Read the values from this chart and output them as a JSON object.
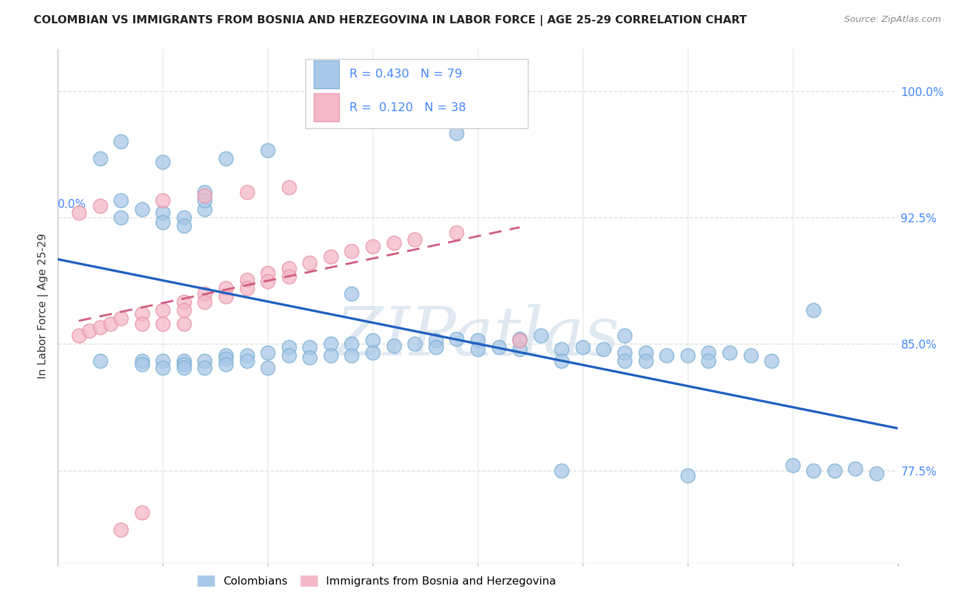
{
  "title": "COLOMBIAN VS IMMIGRANTS FROM BOSNIA AND HERZEGOVINA IN LABOR FORCE | AGE 25-29 CORRELATION CHART",
  "source": "Source: ZipAtlas.com",
  "ylabel": "In Labor Force | Age 25-29",
  "blue_R": 0.43,
  "blue_N": 79,
  "pink_R": 0.12,
  "pink_N": 38,
  "blue_color": "#a8c8e8",
  "blue_edge_color": "#7aafd4",
  "pink_color": "#f4b8c8",
  "pink_edge_color": "#e890a8",
  "blue_line_color": "#2060c0",
  "pink_line_color": "#d06080",
  "legend_blue_label": "Colombians",
  "legend_pink_label": "Immigrants from Bosnia and Herzegovina",
  "xlim": [
    0.0,
    0.4
  ],
  "ylim": [
    0.72,
    1.025
  ],
  "ytick_vals": [
    0.775,
    0.85,
    0.925,
    1.0
  ],
  "ytick_labels": [
    "77.5%",
    "85.0%",
    "92.5%",
    "100.0%"
  ],
  "xtick_vals": [
    0.0,
    0.05,
    0.1,
    0.15,
    0.2,
    0.25,
    0.3,
    0.35,
    0.4
  ],
  "background_color": "#ffffff",
  "grid_color": "#dddddd",
  "watermark": "ZIPatlas",
  "watermark_color": "#c8d8e8",
  "title_color": "#222222",
  "source_color": "#888888",
  "axis_label_color": "#333333",
  "right_tick_color": "#4488ff",
  "bottom_tick_color": "#4488ff",
  "blue_x": [
    0.02,
    0.03,
    0.03,
    0.04,
    0.04,
    0.04,
    0.05,
    0.05,
    0.05,
    0.05,
    0.06,
    0.06,
    0.06,
    0.06,
    0.06,
    0.07,
    0.07,
    0.07,
    0.08,
    0.08,
    0.08,
    0.09,
    0.09,
    0.1,
    0.1,
    0.11,
    0.11,
    0.12,
    0.12,
    0.13,
    0.13,
    0.14,
    0.14,
    0.15,
    0.15,
    0.16,
    0.17,
    0.18,
    0.18,
    0.19,
    0.2,
    0.2,
    0.21,
    0.22,
    0.22,
    0.23,
    0.24,
    0.24,
    0.25,
    0.26,
    0.27,
    0.27,
    0.28,
    0.28,
    0.29,
    0.3,
    0.31,
    0.31,
    0.32,
    0.33,
    0.34,
    0.35,
    0.36,
    0.37,
    0.38,
    0.39,
    0.24,
    0.3,
    0.36,
    0.02,
    0.03,
    0.05,
    0.07,
    0.07,
    0.08,
    0.1,
    0.14,
    0.19,
    0.27
  ],
  "blue_y": [
    0.84,
    0.935,
    0.925,
    0.93,
    0.84,
    0.838,
    0.928,
    0.922,
    0.84,
    0.836,
    0.925,
    0.92,
    0.84,
    0.838,
    0.836,
    0.93,
    0.84,
    0.836,
    0.843,
    0.841,
    0.838,
    0.843,
    0.84,
    0.845,
    0.836,
    0.848,
    0.843,
    0.848,
    0.842,
    0.85,
    0.843,
    0.85,
    0.843,
    0.852,
    0.845,
    0.849,
    0.85,
    0.852,
    0.848,
    0.853,
    0.852,
    0.847,
    0.848,
    0.853,
    0.847,
    0.855,
    0.847,
    0.84,
    0.848,
    0.847,
    0.845,
    0.84,
    0.845,
    0.84,
    0.843,
    0.843,
    0.845,
    0.84,
    0.845,
    0.843,
    0.84,
    0.778,
    0.775,
    0.775,
    0.776,
    0.773,
    0.775,
    0.772,
    0.87,
    0.96,
    0.97,
    0.958,
    0.94,
    0.935,
    0.96,
    0.965,
    0.88,
    0.975,
    0.855
  ],
  "pink_x": [
    0.01,
    0.015,
    0.02,
    0.025,
    0.03,
    0.03,
    0.04,
    0.04,
    0.04,
    0.05,
    0.05,
    0.06,
    0.06,
    0.06,
    0.07,
    0.07,
    0.08,
    0.08,
    0.09,
    0.09,
    0.1,
    0.1,
    0.11,
    0.11,
    0.12,
    0.13,
    0.14,
    0.15,
    0.16,
    0.17,
    0.19,
    0.22,
    0.01,
    0.02,
    0.05,
    0.07,
    0.09,
    0.11
  ],
  "pink_y": [
    0.855,
    0.858,
    0.86,
    0.862,
    0.865,
    0.74,
    0.868,
    0.862,
    0.75,
    0.87,
    0.862,
    0.875,
    0.87,
    0.862,
    0.88,
    0.875,
    0.883,
    0.878,
    0.888,
    0.883,
    0.892,
    0.887,
    0.895,
    0.89,
    0.898,
    0.902,
    0.905,
    0.908,
    0.91,
    0.912,
    0.916,
    0.852,
    0.928,
    0.932,
    0.935,
    0.938,
    0.94,
    0.943
  ]
}
